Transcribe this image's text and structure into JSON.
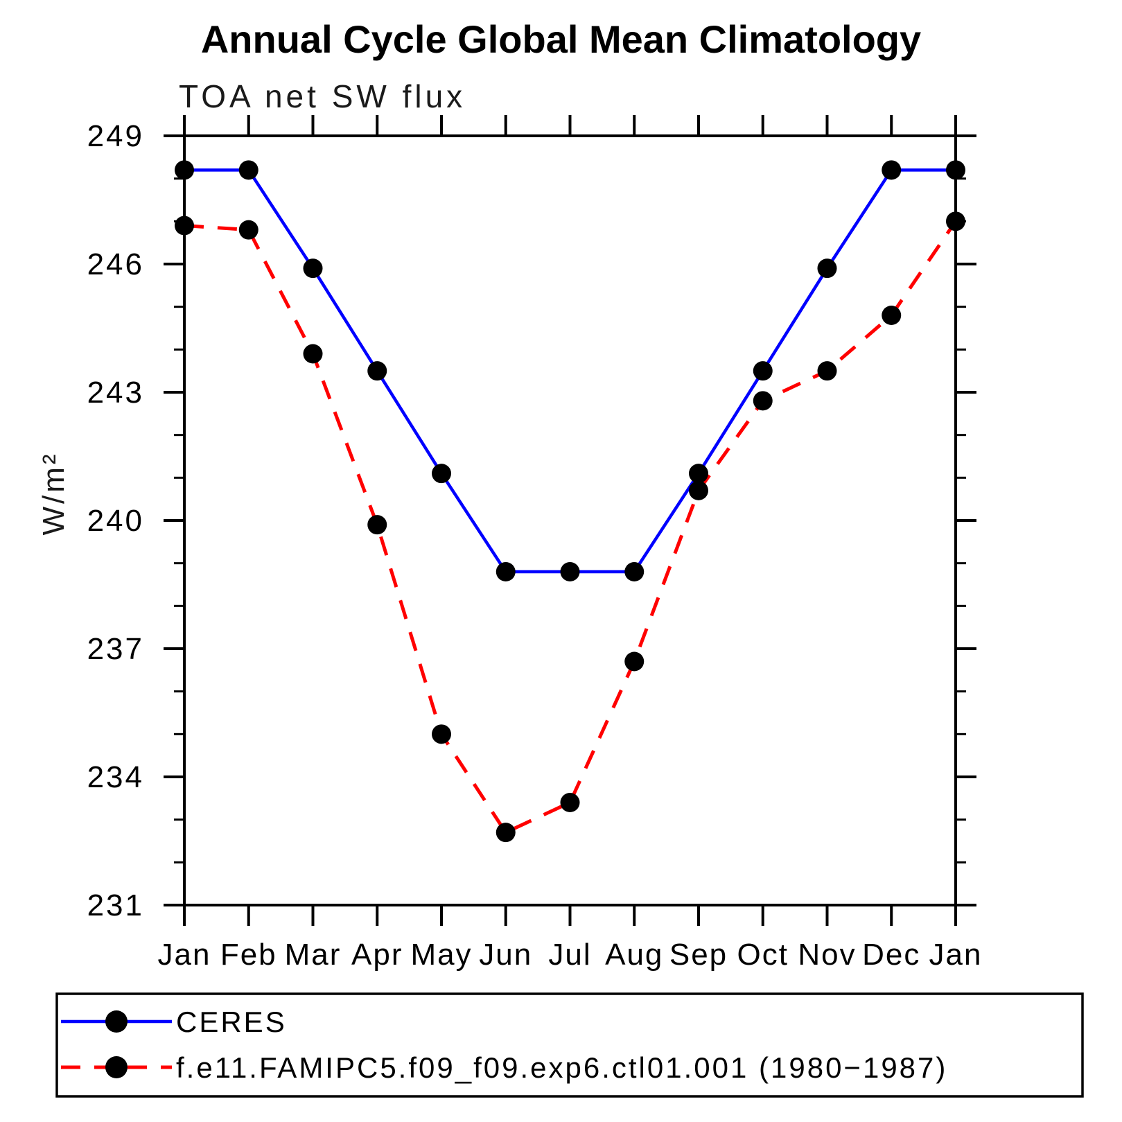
{
  "page": {
    "background_color": "#ffffff",
    "axis_color": "#000000",
    "text_color": "#000000"
  },
  "chart_data": {
    "type": "line",
    "title": "Annual Cycle Global Mean Climatology",
    "subtitle": "TOA net SW flux",
    "ylabel": "W/m²",
    "xlabel": "",
    "x_categories": [
      "Jan",
      "Feb",
      "Mar",
      "Apr",
      "May",
      "Jun",
      "Jul",
      "Aug",
      "Sep",
      "Oct",
      "Nov",
      "Dec",
      "Jan"
    ],
    "y_axis": {
      "min": 231,
      "max": 249,
      "major_step": 3,
      "minor_step": 1,
      "major_ticks": [
        249,
        246,
        243,
        240,
        237,
        234,
        231
      ]
    },
    "grid": "off",
    "legend_position": "bottom-left-box",
    "marker": {
      "shape": "circle",
      "color": "#000000"
    },
    "series": [
      {
        "name": "CERES",
        "color": "#0000ff",
        "line_style": "solid",
        "values": [
          248.2,
          248.2,
          245.9,
          243.5,
          241.1,
          238.8,
          238.8,
          238.8,
          241.1,
          243.5,
          245.9,
          248.2,
          248.2
        ]
      },
      {
        "name": "f.e11.FAMIPC5.f09_f09.exp6.ctl01.001 (1980−1987)",
        "color": "#ff0000",
        "line_style": "dashed",
        "values": [
          246.9,
          246.8,
          243.9,
          239.9,
          235.0,
          232.7,
          233.4,
          236.7,
          240.7,
          242.8,
          243.5,
          244.8,
          247.0
        ]
      }
    ]
  }
}
